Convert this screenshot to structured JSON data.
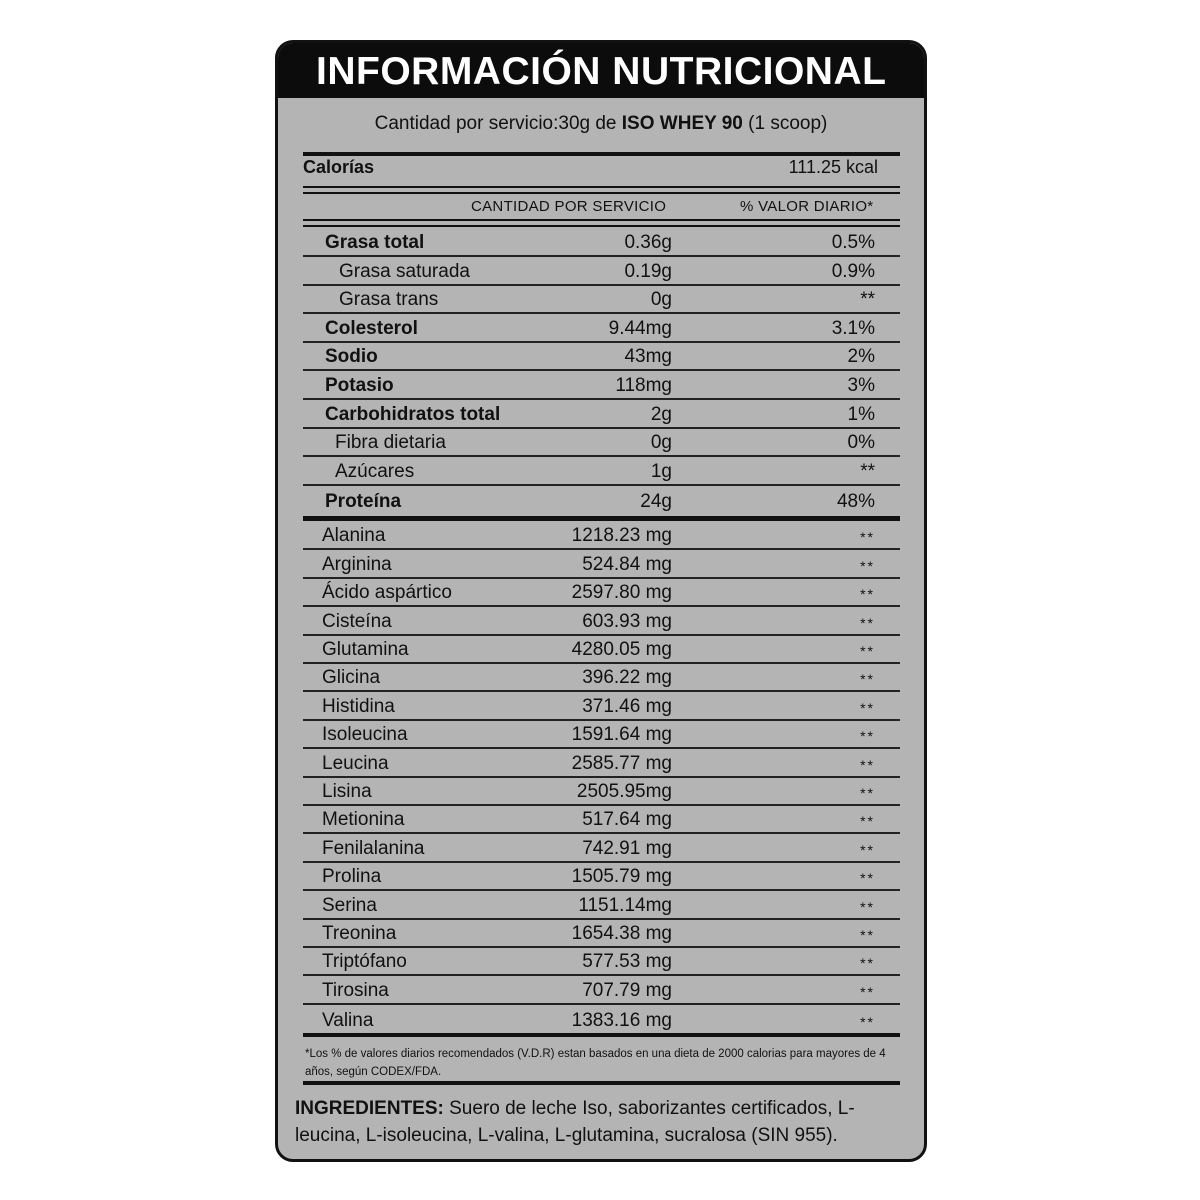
{
  "title": "INFORMACIÓN NUTRICIONAL",
  "serving": {
    "prefix": "Cantidad por servicio:30g de ",
    "product": "ISO WHEY 90",
    "suffix": " (1 scoop)"
  },
  "calories": {
    "label": "Calorías",
    "value": "111.25 kcal"
  },
  "columns": {
    "amount": "CANTIDAD POR SERVICIO",
    "daily_value": "% VALOR DIARIO*"
  },
  "nutrients": [
    {
      "name": "Grasa total",
      "amount": "0.36g",
      "dv": "0.5%",
      "style": "bold"
    },
    {
      "name": "Grasa saturada",
      "amount": "0.19g",
      "dv": "0.9%",
      "style": "sub"
    },
    {
      "name": "Grasa trans",
      "amount": "0g",
      "dv": "**",
      "style": "sub"
    },
    {
      "name": "Colesterol",
      "amount": "9.44mg",
      "dv": "3.1%",
      "style": "bold"
    },
    {
      "name": "Sodio",
      "amount": "43mg",
      "dv": "2%",
      "style": "bold"
    },
    {
      "name": "Potasio",
      "amount": "118mg",
      "dv": "3%",
      "style": "bold"
    },
    {
      "name": "Carbohidratos total",
      "amount": "2g",
      "dv": "1%",
      "style": "bold"
    },
    {
      "name": "Fibra dietaria",
      "amount": "0g",
      "dv": "0%",
      "style": "sub2"
    },
    {
      "name": "Azúcares",
      "amount": "1g",
      "dv": "**",
      "style": "sub2"
    },
    {
      "name": "Proteína",
      "amount": "24g",
      "dv": "48%",
      "style": "bold"
    }
  ],
  "amino_acids": [
    {
      "name": "Alanina",
      "amount": "1218.23 mg",
      "dv": "**"
    },
    {
      "name": "Arginina",
      "amount": "524.84 mg",
      "dv": "**"
    },
    {
      "name": "Ácido aspártico",
      "amount": "2597.80 mg",
      "dv": "**"
    },
    {
      "name": "Cisteína",
      "amount": "603.93 mg",
      "dv": "**"
    },
    {
      "name": "Glutamina",
      "amount": "4280.05 mg",
      "dv": "**"
    },
    {
      "name": "Glicina",
      "amount": "396.22 mg",
      "dv": "**"
    },
    {
      "name": "Histidina",
      "amount": "371.46 mg",
      "dv": "**"
    },
    {
      "name": "Isoleucina",
      "amount": "1591.64 mg",
      "dv": "**"
    },
    {
      "name": "Leucina",
      "amount": "2585.77 mg",
      "dv": "**"
    },
    {
      "name": "Lisina",
      "amount": "2505.95mg",
      "dv": "**"
    },
    {
      "name": "Metionina",
      "amount": "517.64 mg",
      "dv": "**"
    },
    {
      "name": "Fenilalanina",
      "amount": "742.91 mg",
      "dv": "**"
    },
    {
      "name": "Prolina",
      "amount": "1505.79 mg",
      "dv": "**"
    },
    {
      "name": "Serina",
      "amount": "1151.14mg",
      "dv": "**"
    },
    {
      "name": "Treonina",
      "amount": "1654.38 mg",
      "dv": "**"
    },
    {
      "name": "Triptófano",
      "amount": "577.53 mg",
      "dv": "**"
    },
    {
      "name": "Tirosina",
      "amount": "707.79 mg",
      "dv": "**"
    },
    {
      "name": "Valina",
      "amount": "1383.16 mg",
      "dv": "**"
    }
  ],
  "footnote": "*Los % de valores diarios recomendados (V.D.R) estan basados en una dieta de 2000 calorias para mayores de 4 años, según CODEX/FDA.",
  "ingredients": {
    "label": "INGREDIENTES:",
    "text": " Suero de leche Iso, saborizantes certificados, L-leucina, L-isoleucina, L-valina, L-glutamina, sucralosa (SIN 955)."
  },
  "colors": {
    "background": "#b4b4b4",
    "header": "#0c0c0c",
    "text": "#111111"
  }
}
